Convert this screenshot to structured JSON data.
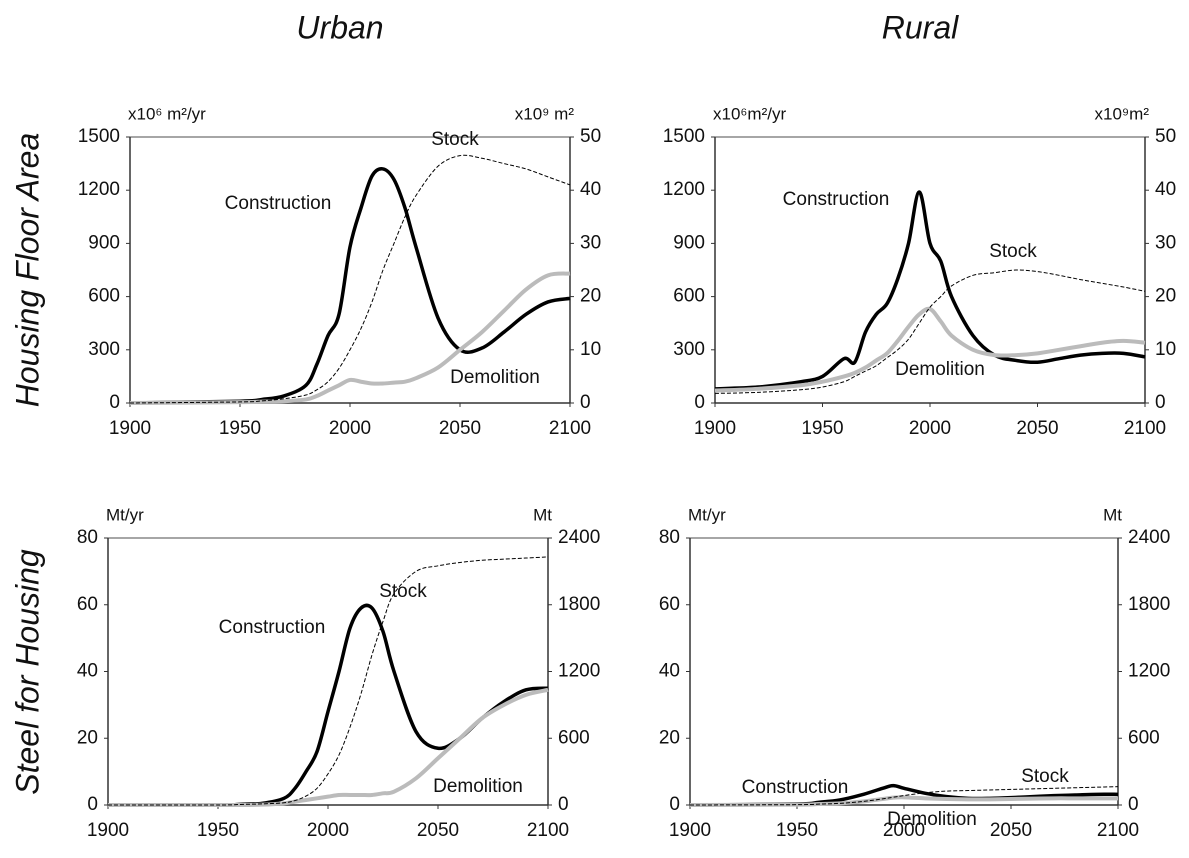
{
  "columns": [
    "Urban",
    "Rural"
  ],
  "rows": [
    "Housing Floor Area",
    "Steel for Housing"
  ],
  "chart_data": [
    {
      "type": "line",
      "y_label": "x10⁶ m²/yr",
      "y2_label": "x10⁹ m²",
      "x": [
        1900,
        1950,
        1960,
        1970,
        1980,
        1985,
        1990,
        1995,
        2000,
        2005,
        2010,
        2015,
        2020,
        2025,
        2030,
        2040,
        2050,
        2060,
        2070,
        2080,
        2090,
        2100
      ],
      "xlim": [
        1900,
        2100
      ],
      "xticks": [
        1900,
        1950,
        2000,
        2050,
        2100
      ],
      "ylim": [
        0,
        1500
      ],
      "yticks": [
        0,
        300,
        600,
        900,
        1200,
        1500
      ],
      "y2lim": [
        0,
        50
      ],
      "y2ticks": [
        0,
        10,
        20,
        30,
        40,
        50
      ],
      "series": [
        {
          "name": "Construction",
          "color": "#000000",
          "style": "solid",
          "values": [
            0,
            10,
            20,
            40,
            100,
            220,
            380,
            500,
            880,
            1100,
            1280,
            1320,
            1260,
            1100,
            880,
            480,
            300,
            310,
            400,
            500,
            570,
            590
          ]
        },
        {
          "name": "Demolition",
          "color": "#bbbbbb",
          "style": "solid",
          "values": [
            0,
            5,
            8,
            10,
            20,
            40,
            70,
            100,
            130,
            120,
            110,
            110,
            115,
            120,
            140,
            200,
            300,
            400,
            520,
            640,
            720,
            730
          ]
        },
        {
          "name": "Stock",
          "color": "#000000",
          "style": "dashed",
          "axis": "y2",
          "values": [
            0,
            0.2,
            0.4,
            0.8,
            1.5,
            2.5,
            4,
            6.5,
            10,
            14,
            19,
            25,
            30,
            35,
            39,
            44.5,
            46.5,
            46,
            45,
            44,
            42.5,
            41
          ]
        }
      ]
    },
    {
      "type": "line",
      "y_label": "x10⁶m²/yr",
      "y2_label": "x10⁹m²",
      "x": [
        1900,
        1920,
        1940,
        1950,
        1960,
        1965,
        1970,
        1975,
        1980,
        1985,
        1990,
        1995,
        2000,
        2005,
        2010,
        2020,
        2030,
        2040,
        2050,
        2060,
        2070,
        2080,
        2090,
        2100
      ],
      "xlim": [
        1900,
        2100
      ],
      "xticks": [
        1900,
        1950,
        2000,
        2050,
        2100
      ],
      "ylim": [
        0,
        1500
      ],
      "yticks": [
        0,
        300,
        600,
        900,
        1200,
        1500
      ],
      "y2lim": [
        0,
        50
      ],
      "y2ticks": [
        0,
        10,
        20,
        30,
        40,
        50
      ],
      "series": [
        {
          "name": "Construction",
          "color": "#000000",
          "style": "solid",
          "values": [
            80,
            90,
            120,
            150,
            250,
            230,
            400,
            500,
            560,
            700,
            900,
            1190,
            900,
            800,
            600,
            380,
            270,
            240,
            230,
            250,
            270,
            280,
            280,
            260
          ]
        },
        {
          "name": "Demolition",
          "color": "#bbbbbb",
          "style": "solid",
          "values": [
            70,
            80,
            100,
            120,
            150,
            170,
            200,
            240,
            280,
            350,
            430,
            500,
            530,
            460,
            380,
            300,
            270,
            270,
            280,
            300,
            320,
            340,
            350,
            340
          ]
        },
        {
          "name": "Stock",
          "color": "#000000",
          "style": "dashed",
          "axis": "y2",
          "values": [
            1.8,
            2,
            2.5,
            3,
            4,
            5,
            6,
            7,
            8.5,
            10,
            12,
            15,
            18,
            20,
            22,
            24,
            24.5,
            25,
            24.7,
            24,
            23.2,
            22.5,
            21.8,
            21
          ]
        }
      ]
    },
    {
      "type": "line",
      "y_label": "Mt/yr",
      "y2_label": "Mt",
      "x": [
        1900,
        1950,
        1960,
        1970,
        1980,
        1985,
        1990,
        1995,
        2000,
        2005,
        2010,
        2015,
        2020,
        2025,
        2030,
        2040,
        2050,
        2060,
        2070,
        2080,
        2090,
        2100
      ],
      "xlim": [
        1900,
        2100
      ],
      "xticks": [
        1900,
        1950,
        2000,
        2050,
        2100
      ],
      "ylim": [
        0,
        80
      ],
      "yticks": [
        0,
        20,
        40,
        60,
        80
      ],
      "y2lim": [
        0,
        2400
      ],
      "y2ticks": [
        0,
        600,
        1200,
        1800,
        2400
      ],
      "series": [
        {
          "name": "Construction",
          "color": "#000000",
          "style": "solid",
          "values": [
            0,
            0,
            0.2,
            0.5,
            2,
            5,
            10,
            16,
            28,
            40,
            53,
            59,
            59,
            52,
            40,
            22,
            17,
            20,
            26,
            31,
            34.5,
            35
          ]
        },
        {
          "name": "Demolition",
          "color": "#bbbbbb",
          "style": "solid",
          "values": [
            0,
            0,
            0,
            0.1,
            0.5,
            1,
            1.5,
            2,
            2.5,
            3,
            3,
            3,
            3,
            3.5,
            4,
            8,
            14,
            20,
            26,
            30,
            33,
            34.5
          ]
        },
        {
          "name": "Stock",
          "color": "#000000",
          "style": "dashed",
          "axis": "y2",
          "values": [
            0,
            0,
            5,
            10,
            20,
            40,
            80,
            150,
            280,
            450,
            700,
            1000,
            1350,
            1650,
            1900,
            2100,
            2150,
            2180,
            2200,
            2210,
            2220,
            2230
          ]
        }
      ]
    },
    {
      "type": "line",
      "y_label": "Mt/yr",
      "y2_label": "Mt",
      "x": [
        1900,
        1950,
        1960,
        1970,
        1980,
        1990,
        1995,
        2000,
        2010,
        2020,
        2030,
        2040,
        2050,
        2060,
        2070,
        2080,
        2090,
        2100
      ],
      "xlim": [
        1900,
        2100
      ],
      "xticks": [
        1900,
        1950,
        2000,
        2050,
        2100
      ],
      "ylim": [
        0,
        80
      ],
      "yticks": [
        0,
        20,
        40,
        60,
        80
      ],
      "y2lim": [
        0,
        2400
      ],
      "y2ticks": [
        0,
        600,
        1200,
        1800,
        2400
      ],
      "series": [
        {
          "name": "Construction",
          "color": "#000000",
          "style": "solid",
          "values": [
            0,
            0.3,
            0.8,
            1.5,
            3,
            5,
            5.8,
            5,
            3.5,
            2.5,
            2,
            2,
            2.2,
            2.5,
            2.8,
            3,
            3.2,
            3.2
          ]
        },
        {
          "name": "Demolition",
          "color": "#bbbbbb",
          "style": "solid",
          "values": [
            0,
            0.1,
            0.3,
            0.5,
            1,
            1.8,
            2.2,
            2.3,
            2,
            1.8,
            1.7,
            1.7,
            1.8,
            1.9,
            2,
            2,
            2,
            2
          ]
        },
        {
          "name": "Stock",
          "color": "#000000",
          "style": "dashed",
          "axis": "y2",
          "values": [
            0,
            3,
            8,
            15,
            30,
            55,
            70,
            85,
            110,
            125,
            130,
            135,
            140,
            145,
            150,
            155,
            160,
            165
          ]
        }
      ]
    }
  ]
}
